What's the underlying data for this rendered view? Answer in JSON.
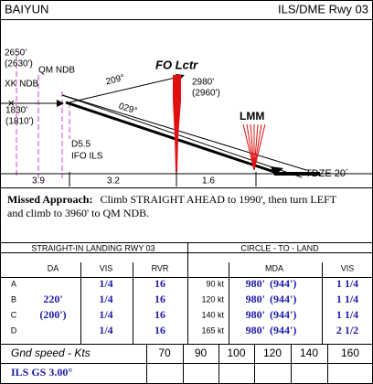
{
  "header": {
    "airport": "BAIYUN",
    "procedure": "ILS/DME Rwy 03"
  },
  "profile": {
    "xk_alt": "2650'",
    "xk_alt_msl": "(2630')",
    "xk_name": "XK NDB",
    "qm_name": "QM NDB",
    "fix_alt": "1830'",
    "fix_alt_msl": "(1810')",
    "course_out": "209°",
    "course_in": "029°",
    "fo_name": "FO Lctr",
    "fo_alt": "2980'",
    "fo_alt_msl": "(2960')",
    "lmm_name": "LMM",
    "fix_dme": "D5.5",
    "fix_ref": "IFO ILS",
    "tdze": "TDZE 20´",
    "distances": [
      "3.9",
      "3.2",
      "1.6"
    ]
  },
  "missed_approach": {
    "label": "Missed Approach:",
    "text_1": "Climb STRAIGHT AHEAD to 1990', then turn LEFT",
    "text_2": "and climb to 3960' to QM NDB."
  },
  "minima": {
    "straight_title": "STRAIGHT-IN LANDING RWY 03",
    "circle_title": "CIRCLE - TO - LAND",
    "straight_columns": [
      "DA",
      "VIS",
      "RVR"
    ],
    "circle_columns": [
      "MDA",
      "VIS"
    ],
    "categories": [
      "A",
      "B",
      "C",
      "D"
    ],
    "da": "220'",
    "da_height": "(200')",
    "straight_rows": [
      [
        "1/4",
        "16"
      ],
      [
        "1/4",
        "16"
      ],
      [
        "1/4",
        "16"
      ],
      [
        "1/4",
        "16"
      ]
    ],
    "circle_rows": [
      [
        "90 kt",
        "980'",
        "(944')",
        "1 1/4"
      ],
      [
        "120 kt",
        "980'",
        "(944')",
        "1 1/4"
      ],
      [
        "140 kt",
        "980'",
        "(944')",
        "1 1/4"
      ],
      [
        "165 kt",
        "980'",
        "(944')",
        "2 1/2"
      ]
    ]
  },
  "ground_speed": {
    "label": "Gnd speed - Kts",
    "speeds": [
      70,
      90,
      100,
      120,
      140,
      160
    ]
  },
  "glideslope": {
    "label": "ILS GS 3.00°"
  }
}
